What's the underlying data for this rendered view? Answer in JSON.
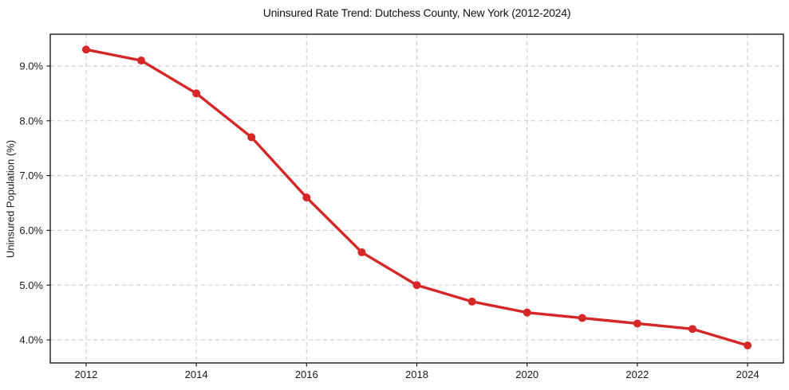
{
  "chart_data": {
    "type": "line",
    "title": "Uninsured Rate Trend: Dutchess County, New York (2012-2024)",
    "xlabel": "",
    "ylabel": "Uninsured Population (%)",
    "series": [
      {
        "name": "Uninsured Population (%)",
        "x": [
          2012,
          2013,
          2014,
          2015,
          2016,
          2017,
          2018,
          2019,
          2020,
          2021,
          2022,
          2023,
          2024
        ],
        "values": [
          9.3,
          9.1,
          8.5,
          7.7,
          6.6,
          5.6,
          5.0,
          4.7,
          4.5,
          4.4,
          4.3,
          4.2,
          3.9
        ]
      }
    ],
    "xticks": [
      2012,
      2014,
      2016,
      2018,
      2020,
      2022,
      2024
    ],
    "yticks": [
      4,
      5,
      6,
      7,
      8,
      9
    ],
    "ytick_labels": [
      "4.0%",
      "5.0%",
      "6.0%",
      "7.0%",
      "8.0%",
      "9.0%"
    ],
    "xlim": [
      2011.35,
      2024.65
    ],
    "ylim": [
      3.58,
      9.58
    ],
    "grid": true,
    "grid_style": "dashed",
    "legend_position": "none",
    "colors": {
      "line": "#d62728",
      "marker": "#d62728",
      "grid": "#cccccc",
      "frame": "#1a1a1a",
      "tick": "#1a1a1a",
      "background": "#ffffff"
    }
  }
}
